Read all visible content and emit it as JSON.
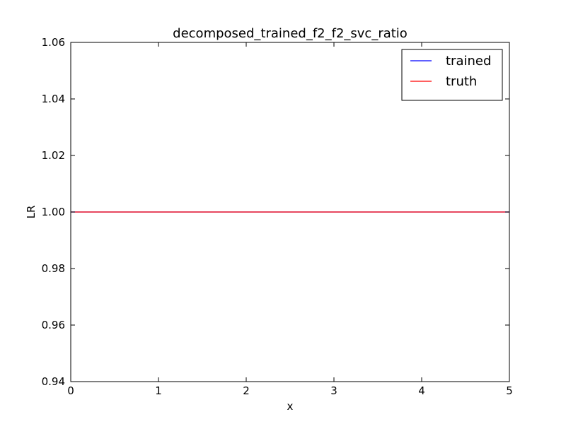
{
  "chart_data": {
    "type": "line",
    "title": "decomposed_trained_f2_f2_svc_ratio",
    "xlabel": "x",
    "ylabel": "LR",
    "xlim": [
      0,
      5
    ],
    "ylim": [
      0.94,
      1.06
    ],
    "xticks": [
      0,
      1,
      2,
      3,
      4,
      5
    ],
    "xtick_labels": [
      "0",
      "1",
      "2",
      "3",
      "4",
      "5"
    ],
    "yticks": [
      0.94,
      0.96,
      0.98,
      1.0,
      1.02,
      1.04,
      1.06
    ],
    "ytick_labels": [
      "0.94",
      "0.96",
      "0.98",
      "1.00",
      "1.02",
      "1.04",
      "1.06"
    ],
    "grid": false,
    "legend_position": "top-right",
    "series": [
      {
        "name": "trained",
        "color": "#0000ff",
        "x": [
          0,
          5
        ],
        "y": [
          1.0,
          1.0
        ]
      },
      {
        "name": "truth",
        "color": "#ff0000",
        "x": [
          0,
          5
        ],
        "y": [
          1.0,
          1.0
        ]
      }
    ]
  }
}
